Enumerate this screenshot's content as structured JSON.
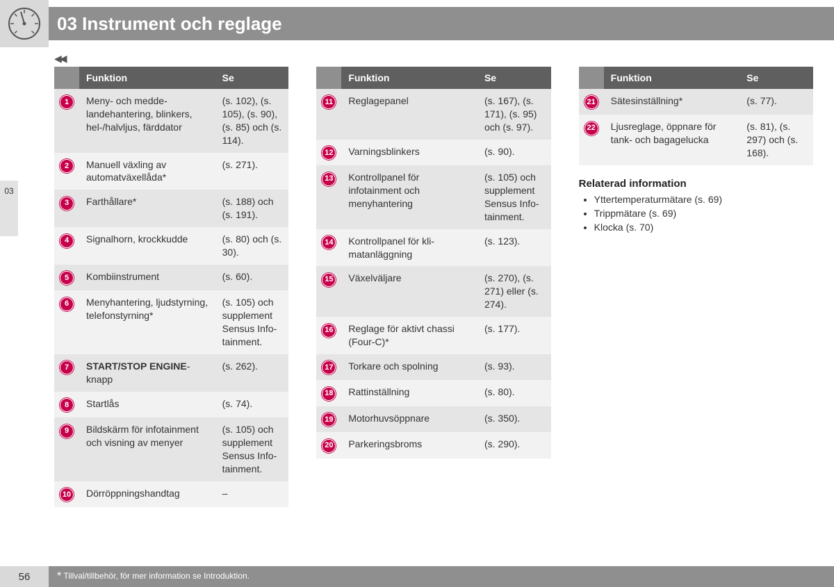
{
  "chapter": {
    "number": "03",
    "title": "03 Instrument och reglage"
  },
  "sideTab": "03",
  "navArrows": "◀◀",
  "headers": {
    "funktion": "Funktion",
    "se": "Se"
  },
  "columns": [
    {
      "rows": [
        {
          "n": "1",
          "f": "Meny- och medde­landehantering, blinkers, hel-/halv­ljus, färddator",
          "s": "(s. 102), (s. 105), (s. 90), (s. 85) och (s. 114)."
        },
        {
          "n": "2",
          "f": "Manuell växling av automatväxellåda*",
          "s": "(s. 271)."
        },
        {
          "n": "3",
          "f": "Farthållare*",
          "s": "(s. 188) och (s. 191)."
        },
        {
          "n": "4",
          "f": "Signalhorn, krock­kudde",
          "s": "(s. 80) och (s. 30)."
        },
        {
          "n": "5",
          "f": "Kombiinstrument",
          "s": "(s. 60)."
        },
        {
          "n": "6",
          "f": "Menyhantering, ljud­styrning, telefonstyr­ning*",
          "s": "(s. 105) och supplement Sensus Info­tainment."
        },
        {
          "n": "7",
          "f_html": "<span class='bold-entry'>START/STOP ENGINE</span>-knapp",
          "s": "(s. 262)."
        },
        {
          "n": "8",
          "f": "Startlås",
          "s": "(s. 74)."
        },
        {
          "n": "9",
          "f": "Bildskärm för info­tainment och visning av menyer",
          "s": "(s. 105) och supplement Sensus Info­tainment."
        },
        {
          "n": "10",
          "f": "Dörröppningshand­tag",
          "s": "–"
        }
      ]
    },
    {
      "rows": [
        {
          "n": "11",
          "f": "Reglagepanel",
          "s": "(s. 167), (s. 171), (s. 95) och (s. 97)."
        },
        {
          "n": "12",
          "f": "Varningsblinkers",
          "s": "(s. 90)."
        },
        {
          "n": "13",
          "f": "Kontrollpanel för infotainment och menyhantering",
          "s": "(s. 105) och supplement Sensus Info­tainment."
        },
        {
          "n": "14",
          "f": "Kontrollpanel för kli­matanläggning",
          "s": "(s. 123)."
        },
        {
          "n": "15",
          "f": "Växelväljare",
          "s": "(s. 270), (s. 271) eller (s. 274)."
        },
        {
          "n": "16",
          "f": "Reglage för aktivt chassi (Four-C)*",
          "s": "(s. 177)."
        },
        {
          "n": "17",
          "f": "Torkare och spolning",
          "s": "(s. 93)."
        },
        {
          "n": "18",
          "f": "Rattinställning",
          "s": "(s. 80)."
        },
        {
          "n": "19",
          "f": "Motorhuvsöppnare",
          "s": "(s. 350)."
        },
        {
          "n": "20",
          "f": "Parkeringsbroms",
          "s": "(s. 290)."
        }
      ]
    },
    {
      "rows": [
        {
          "n": "21",
          "f": "Sätesinställning*",
          "s": "(s. 77)."
        },
        {
          "n": "22",
          "f": "Ljusreglage, öppnare för tank- och bagagelucka",
          "s": "(s. 81), (s. 297) och (s. 168)."
        }
      ],
      "related": {
        "heading": "Relaterad information",
        "items": [
          "Yttertemperaturmätare (s. 69)",
          "Trippmätare (s. 69)",
          "Klocka (s. 70)"
        ]
      }
    }
  ],
  "footer": {
    "page": "56",
    "note": "Tillval/tillbehör, för mer information se Introduktion."
  }
}
